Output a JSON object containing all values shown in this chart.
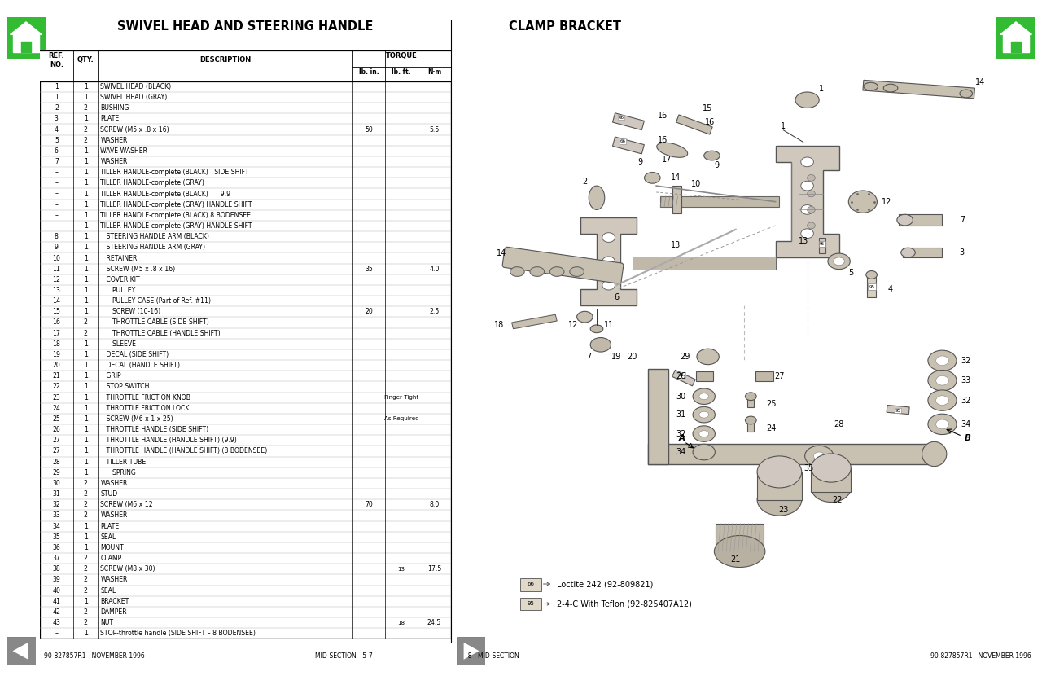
{
  "title_left": "SWIVEL HEAD AND STEERING HANDLE",
  "title_right": "CLAMP BRACKET",
  "bg_color": "#ffffff",
  "torque_header": "TORQUE",
  "rows": [
    [
      "1",
      "1",
      "SWIVEL HEAD (BLACK)",
      "",
      "",
      ""
    ],
    [
      "1",
      "1",
      "SWIVEL HEAD (GRAY)",
      "",
      "",
      ""
    ],
    [
      "2",
      "2",
      "BUSHING",
      "",
      "",
      ""
    ],
    [
      "3",
      "1",
      "PLATE",
      "",
      "",
      ""
    ],
    [
      "4",
      "2",
      "SCREW (M5 x .8 x 16)",
      "50",
      "",
      "5.5"
    ],
    [
      "5",
      "2",
      "WASHER",
      "",
      "",
      ""
    ],
    [
      "6",
      "1",
      "WAVE WASHER",
      "",
      "",
      ""
    ],
    [
      "7",
      "1",
      "WASHER",
      "",
      "",
      ""
    ],
    [
      "–",
      "1",
      "TILLER HANDLE-complete (BLACK)   SIDE SHIFT",
      "",
      "",
      ""
    ],
    [
      "–",
      "1",
      "TILLER HANDLE-complete (GRAY)",
      "",
      "",
      ""
    ],
    [
      "–",
      "1",
      "TILLER HANDLE-complete (BLACK)      9.9",
      "",
      "",
      ""
    ],
    [
      "–",
      "1",
      "TILLER HANDLE-complete (GRAY) HANDLE SHIFT",
      "",
      "",
      ""
    ],
    [
      "–",
      "1",
      "TILLER HANDLE-complete (BLACK) 8 BODENSEE",
      "",
      "",
      ""
    ],
    [
      "–",
      "1",
      "TILLER HANDLE-complete (GRAY) HANDLE SHIFT",
      "",
      "",
      ""
    ],
    [
      "8",
      "1",
      "   STEERING HANDLE ARM (BLACK)",
      "",
      "",
      ""
    ],
    [
      "9",
      "1",
      "   STEERING HANDLE ARM (GRAY)",
      "",
      "",
      ""
    ],
    [
      "10",
      "1",
      "   RETAINER",
      "",
      "",
      ""
    ],
    [
      "11",
      "1",
      "   SCREW (M5 x .8 x 16)",
      "35",
      "",
      "4.0"
    ],
    [
      "12",
      "1",
      "   COVER KIT",
      "",
      "",
      ""
    ],
    [
      "13",
      "1",
      "      PULLEY",
      "",
      "",
      ""
    ],
    [
      "14",
      "1",
      "      PULLEY CASE (Part of Ref. #11)",
      "",
      "",
      ""
    ],
    [
      "15",
      "1",
      "      SCREW (10-16)",
      "20",
      "",
      "2.5"
    ],
    [
      "16",
      "2",
      "      THROTTLE CABLE (SIDE SHIFT)",
      "",
      "",
      ""
    ],
    [
      "17",
      "2",
      "      THROTTLE CABLE (HANDLE SHIFT)",
      "",
      "",
      ""
    ],
    [
      "18",
      "1",
      "      SLEEVE",
      "",
      "",
      ""
    ],
    [
      "19",
      "1",
      "   DECAL (SIDE SHIFT)",
      "",
      "",
      ""
    ],
    [
      "20",
      "1",
      "   DECAL (HANDLE SHIFT)",
      "",
      "",
      ""
    ],
    [
      "21",
      "1",
      "   GRIP",
      "",
      "",
      ""
    ],
    [
      "22",
      "1",
      "   STOP SWITCH",
      "",
      "",
      ""
    ],
    [
      "23",
      "1",
      "   THROTTLE FRICTION KNOB",
      "",
      "Finger Tight",
      ""
    ],
    [
      "24",
      "1",
      "   THROTTLE FRICTION LOCK",
      "",
      "",
      ""
    ],
    [
      "25",
      "1",
      "   SCREW (M6 x 1 x 25)",
      "",
      "As Required",
      ""
    ],
    [
      "26",
      "1",
      "   THROTTLE HANDLE (SIDE SHIFT)",
      "",
      "",
      ""
    ],
    [
      "27",
      "1",
      "   THROTTLE HANDLE (HANDLE SHIFT) (9.9)",
      "",
      "",
      ""
    ],
    [
      "27",
      "1",
      "   THROTTLE HANDLE (HANDLE SHIFT) (8 BODENSEE)",
      "",
      "",
      ""
    ],
    [
      "28",
      "1",
      "   TILLER TUBE",
      "",
      "",
      ""
    ],
    [
      "29",
      "1",
      "      SPRING",
      "",
      "",
      ""
    ],
    [
      "30",
      "2",
      "WASHER",
      "",
      "",
      ""
    ],
    [
      "31",
      "2",
      "STUD",
      "",
      "",
      ""
    ],
    [
      "32",
      "2",
      "SCREW (M6 x 12",
      "70",
      "",
      "8.0"
    ],
    [
      "33",
      "2",
      "WASHER",
      "",
      "",
      ""
    ],
    [
      "34",
      "1",
      "PLATE",
      "",
      "",
      ""
    ],
    [
      "35",
      "1",
      "SEAL",
      "",
      "",
      ""
    ],
    [
      "36",
      "1",
      "MOUNT",
      "",
      "",
      ""
    ],
    [
      "37",
      "2",
      "CLAMP",
      "",
      "",
      ""
    ],
    [
      "38",
      "2",
      "SCREW (M8 x 30)",
      "",
      "13",
      "17.5"
    ],
    [
      "39",
      "2",
      "WASHER",
      "",
      "",
      ""
    ],
    [
      "40",
      "2",
      "SEAL",
      "",
      "",
      ""
    ],
    [
      "41",
      "1",
      "BRACKET",
      "",
      "",
      ""
    ],
    [
      "42",
      "2",
      "DAMPER",
      "",
      "",
      ""
    ],
    [
      "43",
      "2",
      "NUT",
      "",
      "18",
      "24.5"
    ],
    [
      "–",
      "1",
      "STOP-throttle handle (SIDE SHIFT – 8 BODENSEE)",
      "",
      "",
      ""
    ]
  ],
  "footer_left": "90-827857R1   NOVEMBER 1996",
  "footer_center_left": "MID-SECTION - 5-7",
  "footer_center_right": "-8 - MID-SECTION",
  "footer_right": "90-827857R1   NOVEMBER 1996",
  "legend1": "Loctite 242 (92-809821)",
  "legend2": "2-4-C With Teflon (92-825407A12)",
  "line_color": "#333333",
  "part_fill": "#e8e4dc",
  "part_edge": "#555555"
}
